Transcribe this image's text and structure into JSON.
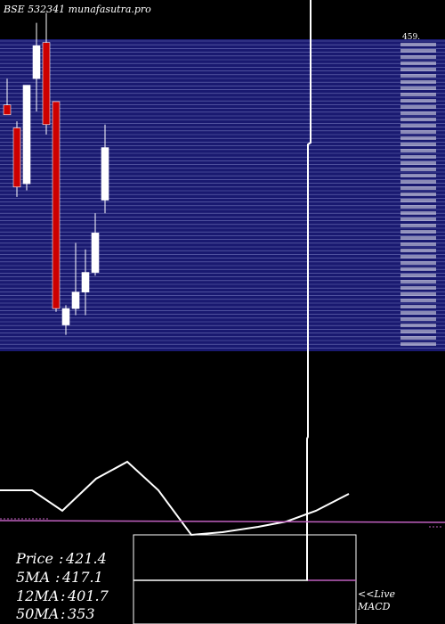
{
  "header": {
    "title": "BSE 532341 munafasutra.pro"
  },
  "colors": {
    "background": "#000000",
    "price_panel": "#191970",
    "price_grid": "#6f72b8",
    "candle_up": "#ffffff",
    "candle_down": "#cc0000",
    "ma_line": "#ffffff",
    "macd_signal": "#c060c0"
  },
  "chart_data": {
    "type": "candlestick",
    "title": "BSE 532341 munafasutra.pro",
    "ylim": [
      345,
      440
    ],
    "right_ticks_label_top": "459.",
    "candles": [
      {
        "open": 420.0,
        "high": 428.0,
        "low": 417.0,
        "close": 417.0
      },
      {
        "open": 413.0,
        "high": 415.0,
        "low": 392.0,
        "close": 395.0
      },
      {
        "open": 396.0,
        "high": 426.0,
        "low": 394.0,
        "close": 426.0
      },
      {
        "open": 428.0,
        "high": 445.0,
        "low": 418.0,
        "close": 438.0
      },
      {
        "open": 439.0,
        "high": 448.0,
        "low": 411.0,
        "close": 414.0
      },
      {
        "open": 421.0,
        "high": 421.0,
        "low": 357.0,
        "close": 358.0
      },
      {
        "open": 353.0,
        "high": 359.0,
        "low": 350.0,
        "close": 358.0
      },
      {
        "open": 358.0,
        "high": 378.0,
        "low": 356.0,
        "close": 363.0
      },
      {
        "open": 363.0,
        "high": 376.0,
        "low": 356.0,
        "close": 369.0
      },
      {
        "open": 369.0,
        "high": 387.0,
        "low": 368.0,
        "close": 381.0
      },
      {
        "open": 391.0,
        "high": 414.0,
        "low": 387.0,
        "close": 407.0
      }
    ],
    "volume_line_values": [
      560,
      570,
      520,
      560,
      580,
      550,
      490,
      480,
      470,
      490,
      520
    ],
    "macd_histogram": 0,
    "stats": [
      {
        "label": "Price",
        "value": "421.4"
      },
      {
        "label": "5MA",
        "value": "417.1"
      },
      {
        "label": "12MA",
        "value": "401.7"
      },
      {
        "label": "50MA",
        "value": "353"
      }
    ],
    "macd_label": "<<Live MACD"
  },
  "macd": {
    "label_line1": "<<Live",
    "label_line2": "MACD"
  }
}
